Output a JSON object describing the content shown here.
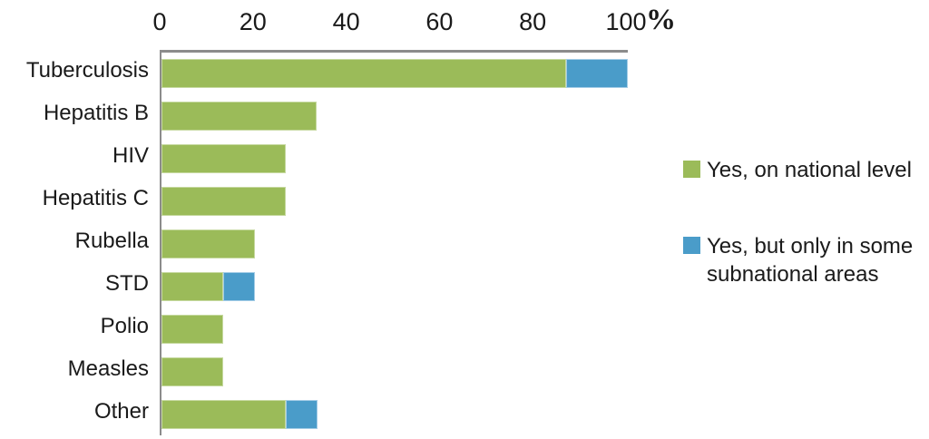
{
  "chart_data": {
    "type": "bar",
    "orientation": "horizontal",
    "stacked": true,
    "title": "",
    "xlabel": "%",
    "ylabel": "",
    "xlim": [
      0,
      100
    ],
    "xticks": [
      0,
      20,
      40,
      60,
      80,
      100
    ],
    "grid": false,
    "legend_position": "right",
    "categories": [
      "Tuberculosis",
      "Hepatitis B",
      "HIV",
      "Hepatitis C",
      "Rubella",
      "STD",
      "Polio",
      "Measles",
      "Other"
    ],
    "series": [
      {
        "name": "Yes, on national level",
        "color": "#9BBB59",
        "border_color": "#c6d9a0",
        "values": [
          86.7,
          33.3,
          26.7,
          26.7,
          20,
          13.3,
          13.3,
          13.3,
          26.7
        ]
      },
      {
        "name": "Yes, but only in some subnational areas",
        "color": "#4A9CC9",
        "border_color": "#a3cce6",
        "values": [
          13.3,
          0,
          0,
          0,
          0,
          6.7,
          0,
          0,
          6.7
        ]
      }
    ]
  },
  "axis": {
    "tick_labels": [
      "0",
      "20",
      "40",
      "60",
      "80",
      "100"
    ],
    "unit": "%"
  },
  "legend": {
    "items": [
      {
        "color": "#9BBB59",
        "lines": [
          "Yes, on national level"
        ]
      },
      {
        "color": "#4A9CC9",
        "lines": [
          "Yes, but only in some",
          "subnational areas"
        ]
      }
    ]
  }
}
